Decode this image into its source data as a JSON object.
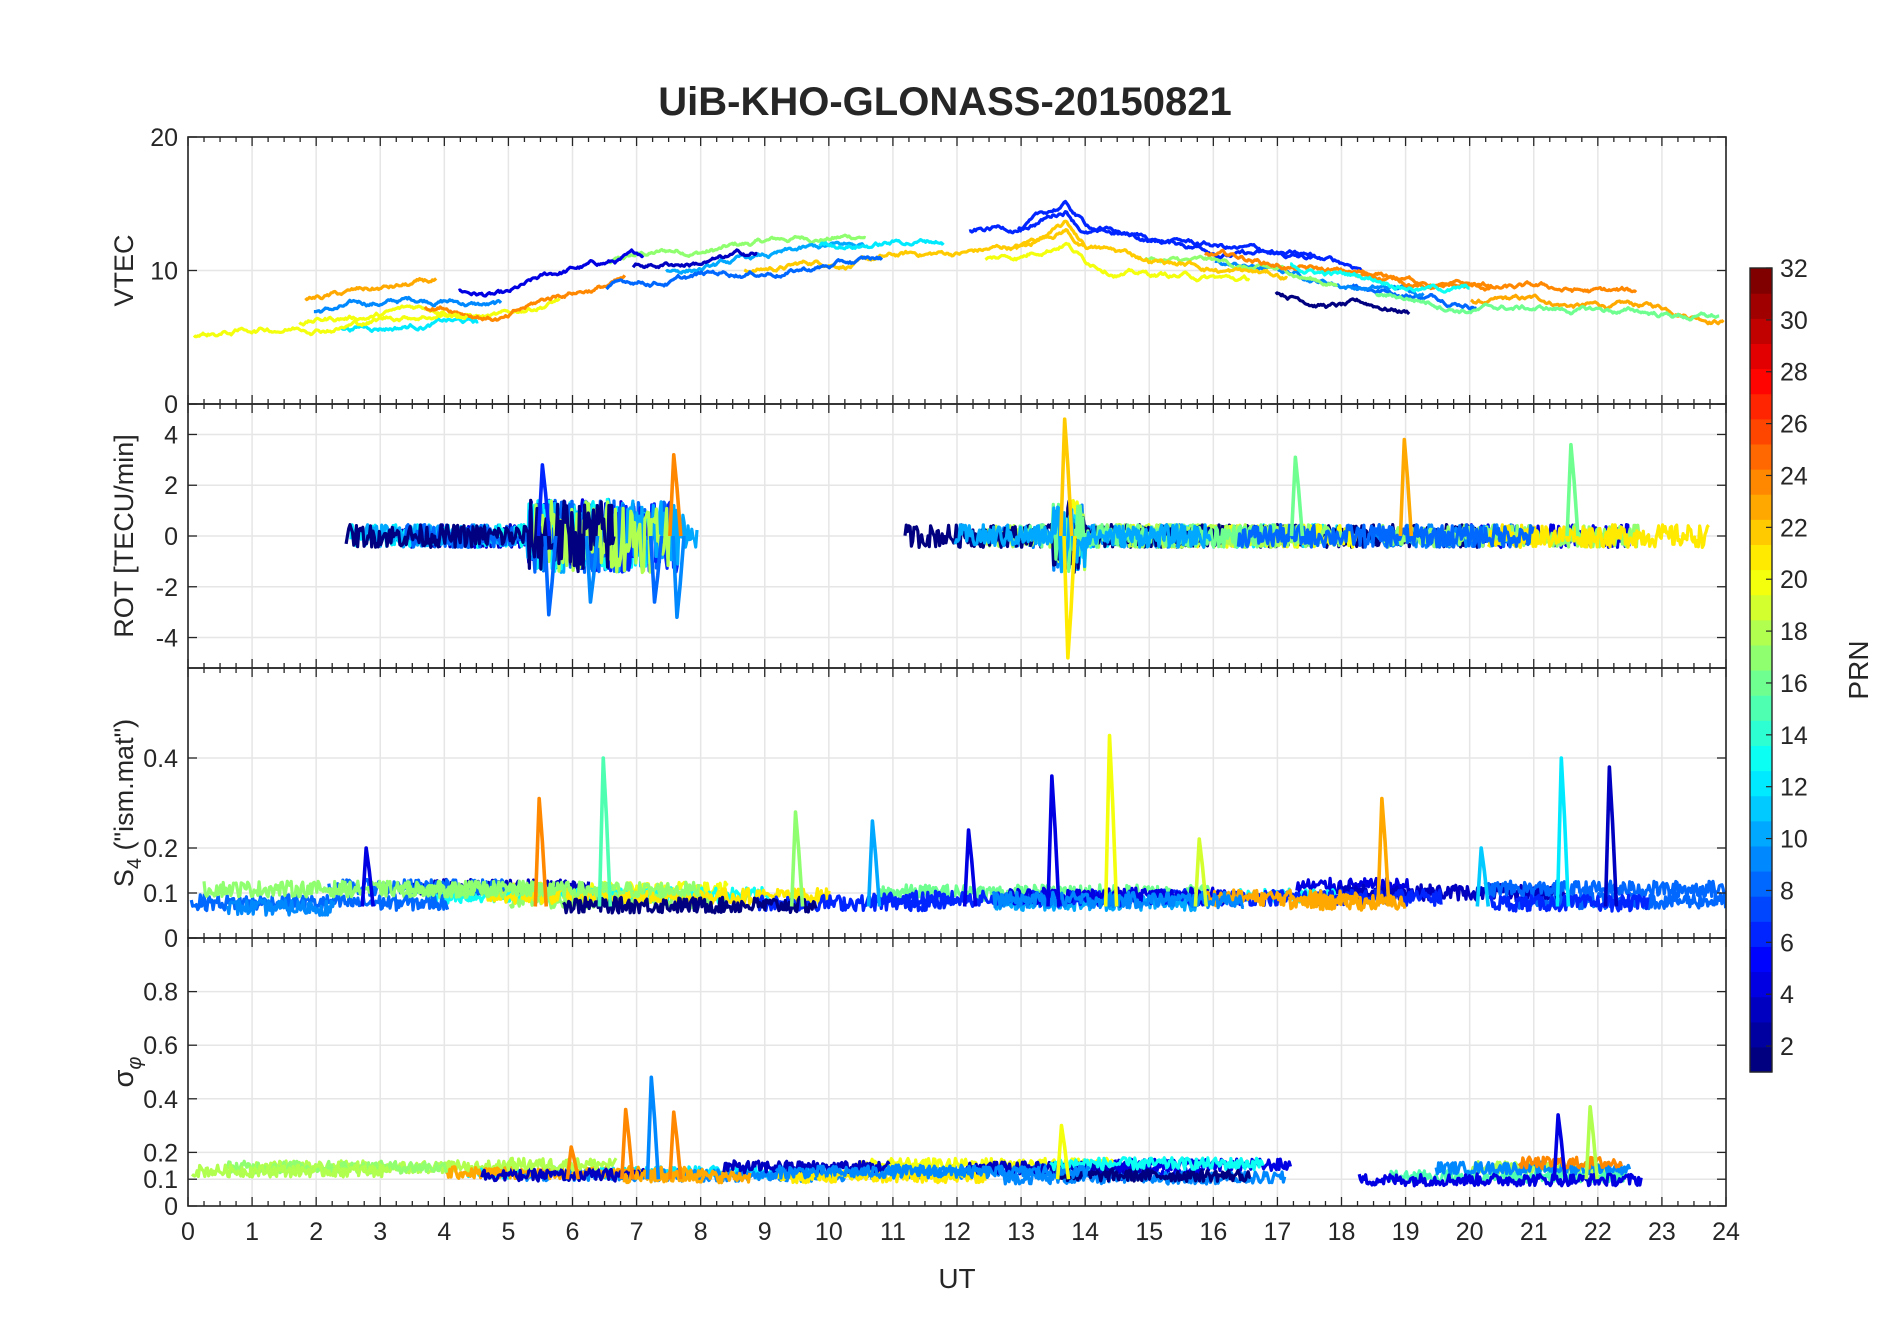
{
  "chart_data": {
    "type": "line",
    "title": "UiB-KHO-GLONASS-20150821",
    "xlabel": "UT",
    "xlim": [
      0,
      24
    ],
    "x_ticks": [
      0,
      1,
      2,
      3,
      4,
      5,
      6,
      7,
      8,
      9,
      10,
      11,
      12,
      13,
      14,
      15,
      16,
      17,
      18,
      19,
      20,
      21,
      22,
      23,
      24
    ],
    "grid": true,
    "panels": [
      {
        "id": "vtec",
        "ylabel": "VTEC",
        "ylim": [
          0,
          20
        ],
        "y_ticks": [
          0,
          10,
          20
        ],
        "series_hint": "VTEC per PRN, roughly 4-8 TECU at 0-5 UT, rising to ~10-13 TECU at 10-16 UT, peak ~15.5 near 13.7 UT, declining to ~6-8 TECU by 24 UT",
        "envelope": {
          "t": [
            0,
            2,
            4,
            5,
            6,
            7,
            8,
            10,
            12,
            13,
            13.7,
            14,
            15,
            16,
            17,
            18,
            19,
            20,
            22,
            24
          ],
          "v": [
            5.5,
            6.5,
            7.5,
            6.8,
            8.5,
            9.5,
            10.0,
            11.0,
            11.5,
            12.0,
            13.5,
            12.0,
            11.0,
            10.5,
            9.8,
            9.0,
            8.5,
            8.0,
            7.5,
            7.0
          ]
        }
      },
      {
        "id": "rot",
        "ylabel": "ROT [TECU/min]",
        "ylim": [
          -5.2,
          5.2
        ],
        "y_ticks": [
          -4,
          -2,
          0,
          2,
          4
        ],
        "series_hint": "Rate of TEC, mostly within +/-0.8, bursts to about +/-3 at 5.5-7.7 UT and about +4.6/-4.8 near 13.7 UT",
        "spikes": [
          {
            "t": 5.55,
            "v": 2.8,
            "prn": 6
          },
          {
            "t": 5.65,
            "v": -3.1,
            "prn": 8
          },
          {
            "t": 6.3,
            "v": -2.6,
            "prn": 9
          },
          {
            "t": 7.3,
            "v": -2.6,
            "prn": 8
          },
          {
            "t": 7.6,
            "v": 3.2,
            "prn": 24
          },
          {
            "t": 7.65,
            "v": -3.2,
            "prn": 9
          },
          {
            "t": 13.7,
            "v": 4.6,
            "prn": 22
          },
          {
            "t": 13.75,
            "v": -4.8,
            "prn": 21
          },
          {
            "t": 17.3,
            "v": 3.1,
            "prn": 16
          },
          {
            "t": 19.0,
            "v": 3.8,
            "prn": 23
          },
          {
            "t": 21.6,
            "v": 3.6,
            "prn": 16
          }
        ]
      },
      {
        "id": "s4",
        "ylabel": "S4 (\"ism.mat\")",
        "ylabel_parts": [
          "S",
          "4",
          " (\"ism.mat\")"
        ],
        "ylim": [
          0,
          0.6
        ],
        "y_ticks": [
          0,
          0.1,
          0.2,
          0.4
        ],
        "tick_labels": [
          "0",
          "0.1",
          "0.2",
          "0.4"
        ],
        "series_hint": "S4 amplitude scintillation, background 0.04-0.12 with spikes",
        "spikes": [
          {
            "t": 2.8,
            "v": 0.2,
            "prn": 4
          },
          {
            "t": 5.5,
            "v": 0.31,
            "prn": 24
          },
          {
            "t": 6.5,
            "v": 0.4,
            "prn": 15
          },
          {
            "t": 9.5,
            "v": 0.28,
            "prn": 17
          },
          {
            "t": 10.7,
            "v": 0.26,
            "prn": 10
          },
          {
            "t": 12.2,
            "v": 0.24,
            "prn": 4
          },
          {
            "t": 13.5,
            "v": 0.36,
            "prn": 4
          },
          {
            "t": 14.4,
            "v": 0.45,
            "prn": 20
          },
          {
            "t": 15.8,
            "v": 0.22,
            "prn": 19
          },
          {
            "t": 18.65,
            "v": 0.31,
            "prn": 23
          },
          {
            "t": 20.2,
            "v": 0.2,
            "prn": 11
          },
          {
            "t": 21.45,
            "v": 0.4,
            "prn": 12
          },
          {
            "t": 22.2,
            "v": 0.38,
            "prn": 3
          }
        ]
      },
      {
        "id": "sigma",
        "ylabel": "σ φ",
        "ylabel_parts": [
          "σ",
          "φ"
        ],
        "ylim": [
          0,
          1
        ],
        "y_ticks": [
          0,
          0.1,
          0.2,
          0.4,
          0.6,
          0.8
        ],
        "tick_labels": [
          "0",
          "0.1",
          "0.2",
          "0.4",
          "0.6",
          "0.8"
        ],
        "series_hint": "Phase scintillation index, background 0.05-0.2 with spikes",
        "spikes": [
          {
            "t": 7.25,
            "v": 0.48,
            "prn": 9
          },
          {
            "t": 6.85,
            "v": 0.36,
            "prn": 24
          },
          {
            "t": 7.6,
            "v": 0.35,
            "prn": 24
          },
          {
            "t": 6.0,
            "v": 0.22,
            "prn": 24
          },
          {
            "t": 13.65,
            "v": 0.3,
            "prn": 20
          },
          {
            "t": 21.4,
            "v": 0.34,
            "prn": 4
          },
          {
            "t": 21.9,
            "v": 0.37,
            "prn": 18
          }
        ]
      }
    ],
    "colorbar": {
      "label": "PRN",
      "range": [
        1,
        32
      ],
      "ticks": [
        2,
        4,
        6,
        8,
        10,
        12,
        14,
        16,
        18,
        20,
        22,
        24,
        26,
        28,
        30,
        32
      ],
      "colormap": "jet"
    }
  },
  "colors": {
    "axis": "#262626",
    "grid": "#e6e6e6",
    "background": "#ffffff"
  }
}
